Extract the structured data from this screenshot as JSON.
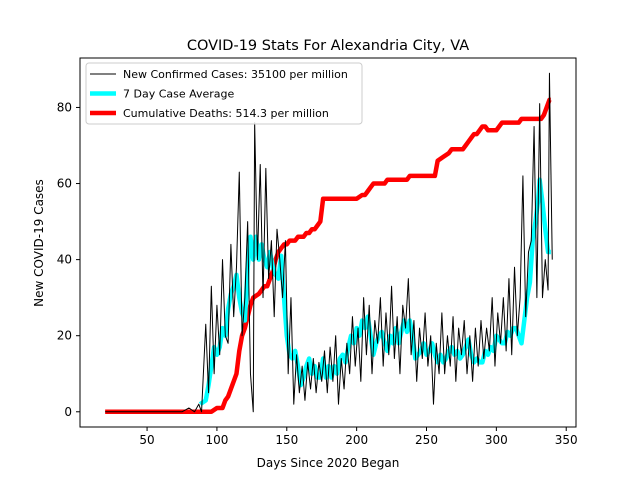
{
  "chart_data": {
    "type": "line",
    "title": "COVID-19 Stats For Alexandria City, VA",
    "xlabel": "Days Since 2020 Began",
    "ylabel": "New COVID-19 Cases",
    "xlim": [
      2,
      357
    ],
    "ylim": [
      -4,
      93
    ],
    "xticks": [
      50,
      100,
      150,
      200,
      250,
      300,
      350
    ],
    "yticks": [
      0,
      20,
      40,
      60,
      80
    ],
    "grid": false,
    "legend_position": "top-left",
    "series": [
      {
        "name": "New Confirmed Cases: 35100 per million",
        "color": "#000000",
        "style": "thin",
        "points": [
          [
            20,
            0
          ],
          [
            75,
            0
          ],
          [
            80,
            1
          ],
          [
            84,
            0
          ],
          [
            87,
            2
          ],
          [
            89,
            0
          ],
          [
            92,
            23
          ],
          [
            94,
            5
          ],
          [
            96,
            33
          ],
          [
            98,
            10
          ],
          [
            100,
            28
          ],
          [
            102,
            15
          ],
          [
            104,
            40
          ],
          [
            106,
            20
          ],
          [
            108,
            18
          ],
          [
            110,
            44
          ],
          [
            112,
            25
          ],
          [
            114,
            38
          ],
          [
            116,
            63
          ],
          [
            118,
            20
          ],
          [
            120,
            30
          ],
          [
            122,
            50
          ],
          [
            124,
            10
          ],
          [
            126,
            0
          ],
          [
            127,
            76
          ],
          [
            129,
            40
          ],
          [
            131,
            65
          ],
          [
            133,
            30
          ],
          [
            135,
            64
          ],
          [
            137,
            35
          ],
          [
            139,
            45
          ],
          [
            141,
            25
          ],
          [
            143,
            48
          ],
          [
            145,
            40
          ],
          [
            147,
            30
          ],
          [
            149,
            45
          ],
          [
            151,
            10
          ],
          [
            153,
            30
          ],
          [
            155,
            2
          ],
          [
            157,
            15
          ],
          [
            159,
            5
          ],
          [
            161,
            12
          ],
          [
            163,
            3
          ],
          [
            165,
            13
          ],
          [
            167,
            6
          ],
          [
            169,
            14
          ],
          [
            171,
            5
          ],
          [
            173,
            13
          ],
          [
            175,
            8
          ],
          [
            177,
            16
          ],
          [
            179,
            5
          ],
          [
            181,
            17
          ],
          [
            183,
            8
          ],
          [
            185,
            20
          ],
          [
            187,
            2
          ],
          [
            189,
            14
          ],
          [
            191,
            6
          ],
          [
            193,
            18
          ],
          [
            195,
            10
          ],
          [
            197,
            25
          ],
          [
            199,
            12
          ],
          [
            201,
            22
          ],
          [
            203,
            8
          ],
          [
            205,
            30
          ],
          [
            207,
            15
          ],
          [
            209,
            28
          ],
          [
            211,
            10
          ],
          [
            213,
            24
          ],
          [
            215,
            18
          ],
          [
            217,
            30
          ],
          [
            219,
            12
          ],
          [
            221,
            26
          ],
          [
            223,
            15
          ],
          [
            225,
            33
          ],
          [
            227,
            14
          ],
          [
            229,
            25
          ],
          [
            231,
            10
          ],
          [
            233,
            28
          ],
          [
            235,
            22
          ],
          [
            237,
            35
          ],
          [
            239,
            15
          ],
          [
            241,
            24
          ],
          [
            243,
            8
          ],
          [
            245,
            22
          ],
          [
            247,
            14
          ],
          [
            249,
            26
          ],
          [
            251,
            12
          ],
          [
            253,
            20
          ],
          [
            255,
            2
          ],
          [
            257,
            18
          ],
          [
            259,
            10
          ],
          [
            261,
            26
          ],
          [
            263,
            10
          ],
          [
            265,
            20
          ],
          [
            267,
            12
          ],
          [
            269,
            25
          ],
          [
            271,
            8
          ],
          [
            273,
            22
          ],
          [
            275,
            15
          ],
          [
            277,
            24
          ],
          [
            279,
            10
          ],
          [
            281,
            20
          ],
          [
            283,
            8
          ],
          [
            285,
            22
          ],
          [
            287,
            12
          ],
          [
            289,
            24
          ],
          [
            291,
            14
          ],
          [
            293,
            22
          ],
          [
            295,
            16
          ],
          [
            297,
            30
          ],
          [
            299,
            12
          ],
          [
            301,
            26
          ],
          [
            303,
            18
          ],
          [
            305,
            30
          ],
          [
            307,
            16
          ],
          [
            309,
            35
          ],
          [
            311,
            15
          ],
          [
            313,
            38
          ],
          [
            315,
            20
          ],
          [
            317,
            30
          ],
          [
            319,
            62
          ],
          [
            321,
            25
          ],
          [
            323,
            42
          ],
          [
            325,
            45
          ],
          [
            327,
            75
          ],
          [
            329,
            30
          ],
          [
            331,
            81
          ],
          [
            333,
            30
          ],
          [
            335,
            40
          ],
          [
            337,
            32
          ],
          [
            338,
            89
          ],
          [
            340,
            40
          ]
        ]
      },
      {
        "name": "7 Day Case Average",
        "color": "#00ffff",
        "style": "medium",
        "points": [
          [
            88,
            2
          ],
          [
            92,
            3
          ],
          [
            94,
            7
          ],
          [
            96,
            12
          ],
          [
            98,
            17
          ],
          [
            100,
            15
          ],
          [
            102,
            17
          ],
          [
            104,
            22
          ],
          [
            106,
            20
          ],
          [
            108,
            27
          ],
          [
            110,
            31
          ],
          [
            112,
            33
          ],
          [
            114,
            36
          ],
          [
            116,
            30
          ],
          [
            118,
            26
          ],
          [
            120,
            24
          ],
          [
            122,
            38
          ],
          [
            124,
            46
          ],
          [
            126,
            40
          ],
          [
            128,
            46
          ],
          [
            130,
            40
          ],
          [
            132,
            44
          ],
          [
            134,
            40
          ],
          [
            136,
            38
          ],
          [
            138,
            42
          ],
          [
            140,
            38
          ],
          [
            142,
            36
          ],
          [
            144,
            35
          ],
          [
            146,
            41
          ],
          [
            148,
            30
          ],
          [
            150,
            20
          ],
          [
            152,
            15
          ],
          [
            154,
            14
          ],
          [
            156,
            16
          ],
          [
            158,
            12
          ],
          [
            160,
            7
          ],
          [
            162,
            9
          ],
          [
            164,
            12
          ],
          [
            166,
            14
          ],
          [
            168,
            10
          ],
          [
            170,
            12
          ],
          [
            172,
            9
          ],
          [
            174,
            9
          ],
          [
            176,
            14
          ],
          [
            178,
            9
          ],
          [
            180,
            12
          ],
          [
            182,
            9
          ],
          [
            184,
            12
          ],
          [
            186,
            10
          ],
          [
            188,
            14
          ],
          [
            190,
            15
          ],
          [
            192,
            13
          ],
          [
            194,
            17
          ],
          [
            196,
            20
          ],
          [
            198,
            18
          ],
          [
            200,
            22
          ],
          [
            202,
            20
          ],
          [
            204,
            24
          ],
          [
            206,
            22
          ],
          [
            208,
            25
          ],
          [
            210,
            20
          ],
          [
            212,
            15
          ],
          [
            214,
            18
          ],
          [
            216,
            20
          ],
          [
            218,
            21
          ],
          [
            220,
            18
          ],
          [
            222,
            16
          ],
          [
            224,
            20
          ],
          [
            226,
            18
          ],
          [
            228,
            22
          ],
          [
            230,
            18
          ],
          [
            232,
            21
          ],
          [
            234,
            24
          ],
          [
            236,
            21
          ],
          [
            238,
            24
          ],
          [
            240,
            20
          ],
          [
            242,
            14
          ],
          [
            244,
            15
          ],
          [
            246,
            16
          ],
          [
            248,
            18
          ],
          [
            250,
            15
          ],
          [
            252,
            16
          ],
          [
            254,
            18
          ],
          [
            256,
            15
          ],
          [
            258,
            13
          ],
          [
            260,
            15
          ],
          [
            262,
            13
          ],
          [
            264,
            14
          ],
          [
            266,
            16
          ],
          [
            268,
            17
          ],
          [
            270,
            15
          ],
          [
            272,
            16
          ],
          [
            274,
            14
          ],
          [
            276,
            15
          ],
          [
            278,
            17
          ],
          [
            280,
            19
          ],
          [
            282,
            15
          ],
          [
            284,
            13
          ],
          [
            286,
            14
          ],
          [
            288,
            13
          ],
          [
            290,
            13
          ],
          [
            292,
            16
          ],
          [
            294,
            15
          ],
          [
            296,
            17
          ],
          [
            298,
            16
          ],
          [
            300,
            20
          ],
          [
            302,
            19
          ],
          [
            304,
            18
          ],
          [
            306,
            18
          ],
          [
            308,
            21
          ],
          [
            310,
            20
          ],
          [
            312,
            22
          ],
          [
            314,
            22
          ],
          [
            316,
            20
          ],
          [
            318,
            18
          ],
          [
            320,
            24
          ],
          [
            322,
            30
          ],
          [
            324,
            34
          ],
          [
            326,
            45
          ],
          [
            328,
            50
          ],
          [
            330,
            56
          ],
          [
            331,
            61
          ],
          [
            333,
            55
          ],
          [
            335,
            48
          ],
          [
            337,
            42
          ],
          [
            339,
            42
          ]
        ]
      },
      {
        "name": "Cumulative Deaths: 514.3 per million",
        "color": "#ff0000",
        "style": "thick",
        "points": [
          [
            20,
            0
          ],
          [
            96,
            0
          ],
          [
            100,
            1
          ],
          [
            104,
            1
          ],
          [
            106,
            3
          ],
          [
            108,
            4
          ],
          [
            110,
            6
          ],
          [
            112,
            8
          ],
          [
            114,
            10
          ],
          [
            116,
            16
          ],
          [
            118,
            20
          ],
          [
            120,
            22
          ],
          [
            122,
            25
          ],
          [
            124,
            28
          ],
          [
            126,
            30
          ],
          [
            130,
            31
          ],
          [
            134,
            33
          ],
          [
            136,
            33
          ],
          [
            138,
            35
          ],
          [
            140,
            37
          ],
          [
            142,
            40
          ],
          [
            144,
            42
          ],
          [
            146,
            43
          ],
          [
            148,
            44
          ],
          [
            150,
            44
          ],
          [
            152,
            45
          ],
          [
            156,
            45
          ],
          [
            158,
            46
          ],
          [
            162,
            46
          ],
          [
            164,
            47
          ],
          [
            166,
            47
          ],
          [
            168,
            48
          ],
          [
            170,
            48
          ],
          [
            172,
            49
          ],
          [
            174,
            50
          ],
          [
            176,
            56
          ],
          [
            200,
            56
          ],
          [
            204,
            57
          ],
          [
            206,
            57
          ],
          [
            208,
            58
          ],
          [
            210,
            59
          ],
          [
            212,
            60
          ],
          [
            220,
            60
          ],
          [
            222,
            61
          ],
          [
            226,
            61
          ],
          [
            236,
            61
          ],
          [
            238,
            62
          ],
          [
            256,
            62
          ],
          [
            258,
            66
          ],
          [
            262,
            67
          ],
          [
            266,
            68
          ],
          [
            268,
            69
          ],
          [
            276,
            69
          ],
          [
            278,
            70
          ],
          [
            280,
            71
          ],
          [
            282,
            72
          ],
          [
            284,
            73
          ],
          [
            286,
            73
          ],
          [
            288,
            74
          ],
          [
            290,
            75
          ],
          [
            292,
            75
          ],
          [
            294,
            74
          ],
          [
            300,
            74
          ],
          [
            304,
            76
          ],
          [
            316,
            76
          ],
          [
            318,
            77
          ],
          [
            332,
            77
          ],
          [
            334,
            78
          ],
          [
            336,
            80
          ],
          [
            338,
            82
          ],
          [
            339,
            82
          ]
        ]
      }
    ]
  }
}
